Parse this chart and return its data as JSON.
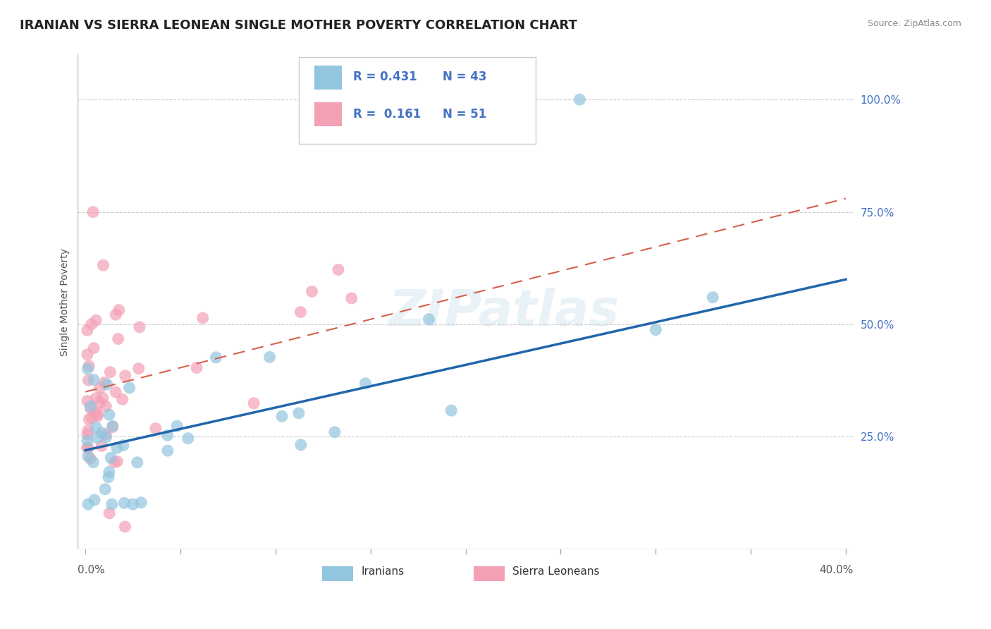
{
  "title": "IRANIAN VS SIERRA LEONEAN SINGLE MOTHER POVERTY CORRELATION CHART",
  "source": "Source: ZipAtlas.com",
  "ylabel": "Single Mother Poverty",
  "xlim": [
    0.0,
    0.4
  ],
  "ylim": [
    0.0,
    1.1
  ],
  "yticks": [
    0.25,
    0.5,
    0.75,
    1.0
  ],
  "ytick_labels": [
    "25.0%",
    "50.0%",
    "75.0%",
    "100.0%"
  ],
  "iranians_color": "#92c5de",
  "sierra_color": "#f4a0b5",
  "regression_blue_color": "#2166ac",
  "regression_pink_color": "#d6604d",
  "watermark": "ZIPatlas",
  "title_fontsize": 13,
  "axis_label_fontsize": 10,
  "tick_fontsize": 11,
  "source_fontsize": 9,
  "iran_R": 0.431,
  "iran_N": 43,
  "sierra_R": 0.161,
  "sierra_N": 51,
  "iran_line_x0": 0.0,
  "iran_line_y0": 0.22,
  "iran_line_x1": 0.4,
  "iran_line_y1": 0.6,
  "sierra_line_x0": 0.0,
  "sierra_line_y0": 0.35,
  "sierra_line_x1": 0.4,
  "sierra_line_y1": 0.78
}
